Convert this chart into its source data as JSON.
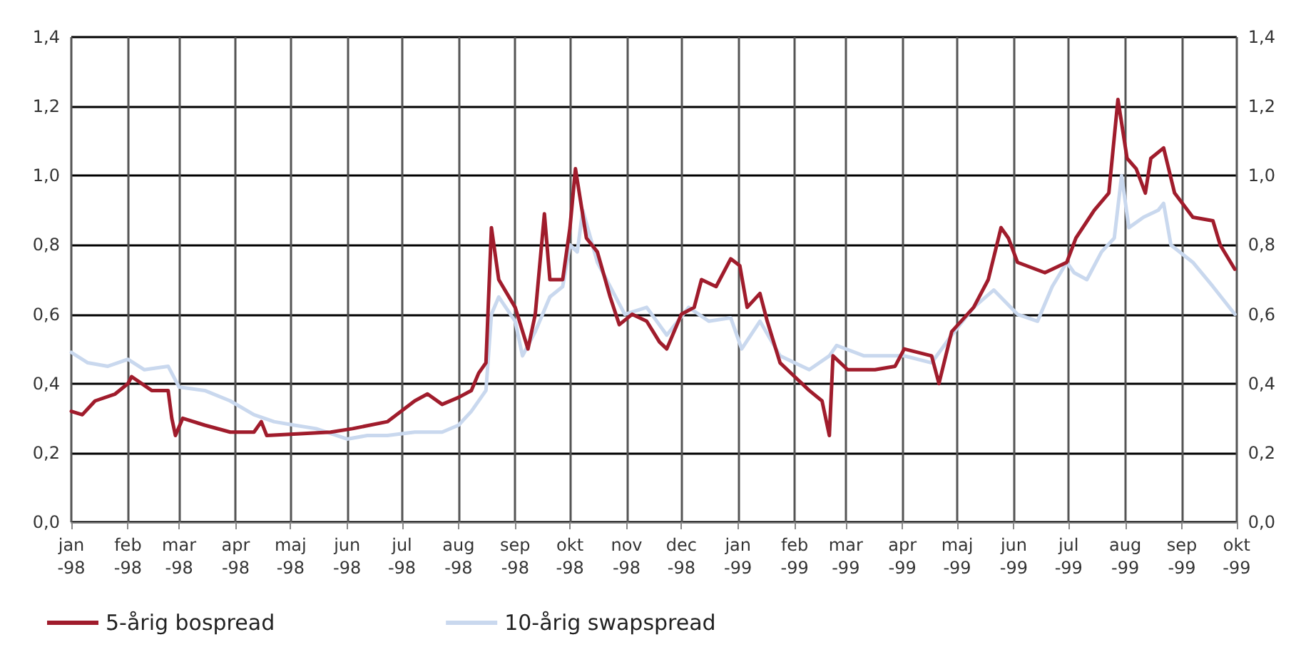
{
  "chart_data": {
    "type": "line",
    "xlim": [
      "1998-01-01",
      "1999-10-01"
    ],
    "xticks": [
      {
        "value": "1998-01-01",
        "label": "jan\n-98"
      },
      {
        "value": "1998-02-01",
        "label": "feb\n-98"
      },
      {
        "value": "1998-03-01",
        "label": "mar\n-98"
      },
      {
        "value": "1998-04-01",
        "label": "apr\n-98"
      },
      {
        "value": "1998-05-01",
        "label": "maj\n-98"
      },
      {
        "value": "1998-06-01",
        "label": "jun\n-98"
      },
      {
        "value": "1998-07-01",
        "label": "jul\n-98"
      },
      {
        "value": "1998-08-01",
        "label": "aug\n-98"
      },
      {
        "value": "1998-09-01",
        "label": "sep\n-98"
      },
      {
        "value": "1998-10-01",
        "label": "okt\n-98"
      },
      {
        "value": "1998-11-01",
        "label": "nov\n-98"
      },
      {
        "value": "1998-12-01",
        "label": "dec\n-98"
      },
      {
        "value": "1999-01-01",
        "label": "jan\n-99"
      },
      {
        "value": "1999-02-01",
        "label": "feb\n-99"
      },
      {
        "value": "1999-03-01",
        "label": "mar\n-99"
      },
      {
        "value": "1999-04-01",
        "label": "apr\n-99"
      },
      {
        "value": "1999-05-01",
        "label": "maj\n-99"
      },
      {
        "value": "1999-06-01",
        "label": "jun\n-99"
      },
      {
        "value": "1999-07-01",
        "label": "jul\n-99"
      },
      {
        "value": "1999-08-01",
        "label": "aug\n-99"
      },
      {
        "value": "1999-09-01",
        "label": "sep\n-99"
      },
      {
        "value": "1999-10-01",
        "label": "okt\n-99"
      }
    ],
    "ylim": [
      0,
      1.4
    ],
    "yticks": [
      {
        "value": 0,
        "label": "0,0"
      },
      {
        "value": 0.2,
        "label": "0,2"
      },
      {
        "value": 0.4,
        "label": "0,4"
      },
      {
        "value": 0.6,
        "label": "0,6"
      },
      {
        "value": 0.8,
        "label": "0,8"
      },
      {
        "value": 1.0,
        "label": "1,0"
      },
      {
        "value": 1.2,
        "label": "1,2"
      },
      {
        "value": 1.4,
        "label": "1,4"
      }
    ],
    "y2lim": [
      0,
      1.4
    ],
    "y2ticks": [
      {
        "value": 0,
        "label": "0,0"
      },
      {
        "value": 0.2,
        "label": "0,2"
      },
      {
        "value": 0.4,
        "label": "0,4"
      },
      {
        "value": 0.6,
        "label": "0,6"
      },
      {
        "value": 0.8,
        "label": "0,8"
      },
      {
        "value": 1.0,
        "label": "1,0"
      },
      {
        "value": 1.2,
        "label": "1,2"
      },
      {
        "value": 1.4,
        "label": "1,4"
      }
    ],
    "grid": true,
    "legend": "bottom left",
    "marker": "none",
    "series": [
      {
        "name": "5-årig bospread",
        "color": "#a01c2c",
        "x": [
          "1998-01-01",
          "1998-01-07",
          "1998-01-14",
          "1998-01-25",
          "1998-02-01",
          "1998-02-03",
          "1998-02-14",
          "1998-02-23",
          "1998-02-25",
          "1998-02-27",
          "1998-03-03",
          "1998-03-15",
          "1998-03-29",
          "1998-04-11",
          "1998-04-15",
          "1998-04-18",
          "1998-05-23",
          "1998-06-04",
          "1998-06-23",
          "1998-07-08",
          "1998-07-15",
          "1998-07-23",
          "1998-08-01",
          "1998-08-08",
          "1998-08-12",
          "1998-08-16",
          "1998-08-19",
          "1998-08-23",
          "1998-09-01",
          "1998-09-08",
          "1998-09-12",
          "1998-09-17",
          "1998-09-20",
          "1998-09-27",
          "1998-10-01",
          "1998-10-04",
          "1998-10-10",
          "1998-10-16",
          "1998-10-23",
          "1998-10-28",
          "1998-11-04",
          "1998-11-12",
          "1998-11-19",
          "1998-11-23",
          "1998-12-01",
          "1998-12-08",
          "1998-12-12",
          "1998-12-20",
          "1998-12-28",
          "1999-01-02",
          "1999-01-06",
          "1999-01-13",
          "1999-01-17",
          "1999-01-24",
          "1999-02-01",
          "1999-02-09",
          "1999-02-16",
          "1999-02-20",
          "1999-02-22",
          "1999-03-02",
          "1999-03-17",
          "1999-03-28",
          "1999-04-02",
          "1999-04-17",
          "1999-04-21",
          "1999-04-28",
          "1999-05-10",
          "1999-05-18",
          "1999-05-25",
          "1999-05-29",
          "1999-06-03",
          "1999-06-18",
          "1999-06-30",
          "1999-07-05",
          "1999-07-15",
          "1999-07-23",
          "1999-07-28",
          "1999-08-02",
          "1999-08-07",
          "1999-08-12",
          "1999-08-15",
          "1999-08-22",
          "1999-08-28",
          "1999-09-07",
          "1999-09-18",
          "1999-09-22",
          "1999-09-30"
        ],
        "values": [
          0.32,
          0.31,
          0.35,
          0.37,
          0.4,
          0.42,
          0.38,
          0.38,
          0.3,
          0.25,
          0.3,
          0.28,
          0.26,
          0.26,
          0.29,
          0.25,
          0.26,
          0.27,
          0.29,
          0.35,
          0.37,
          0.34,
          0.36,
          0.38,
          0.43,
          0.46,
          0.85,
          0.7,
          0.62,
          0.5,
          0.6,
          0.89,
          0.7,
          0.7,
          0.85,
          1.02,
          0.82,
          0.78,
          0.65,
          0.57,
          0.6,
          0.58,
          0.52,
          0.5,
          0.6,
          0.62,
          0.7,
          0.68,
          0.76,
          0.74,
          0.62,
          0.66,
          0.58,
          0.46,
          0.42,
          0.38,
          0.35,
          0.25,
          0.48,
          0.44,
          0.44,
          0.45,
          0.5,
          0.48,
          0.4,
          0.55,
          0.62,
          0.7,
          0.85,
          0.82,
          0.75,
          0.72,
          0.75,
          0.82,
          0.9,
          0.95,
          1.22,
          1.05,
          1.02,
          0.95,
          1.05,
          1.08,
          0.95,
          0.88,
          0.87,
          0.8,
          0.73
        ]
      },
      {
        "name": "10-årig swapspread",
        "color": "#c9d8ee",
        "x": [
          "1998-01-01",
          "1998-01-10",
          "1998-01-21",
          "1998-02-01",
          "1998-02-10",
          "1998-02-23",
          "1998-03-01",
          "1998-03-15",
          "1998-03-29",
          "1998-04-11",
          "1998-04-22",
          "1998-05-03",
          "1998-05-15",
          "1998-06-01",
          "1998-06-12",
          "1998-06-23",
          "1998-07-08",
          "1998-07-23",
          "1998-08-01",
          "1998-08-08",
          "1998-08-16",
          "1998-08-19",
          "1998-08-23",
          "1998-09-01",
          "1998-09-05",
          "1998-09-12",
          "1998-09-20",
          "1998-09-27",
          "1998-10-01",
          "1998-10-05",
          "1998-10-08",
          "1998-10-16",
          "1998-10-23",
          "1998-10-31",
          "1998-11-12",
          "1998-11-23",
          "1998-12-05",
          "1998-12-16",
          "1998-12-28",
          "1999-01-03",
          "1999-01-13",
          "1999-01-24",
          "1999-02-09",
          "1999-02-20",
          "1999-02-24",
          "1999-03-11",
          "1999-04-02",
          "1999-04-17",
          "1999-04-28",
          "1999-05-10",
          "1999-05-21",
          "1999-06-03",
          "1999-06-14",
          "1999-06-22",
          "1999-06-30",
          "1999-07-04",
          "1999-07-11",
          "1999-07-19",
          "1999-07-26",
          "1999-07-30",
          "1999-08-03",
          "1999-08-11",
          "1999-08-19",
          "1999-08-22",
          "1999-08-26",
          "1999-09-07",
          "1999-09-18",
          "1999-09-30"
        ],
        "values": [
          0.49,
          0.46,
          0.45,
          0.47,
          0.44,
          0.45,
          0.39,
          0.38,
          0.35,
          0.31,
          0.29,
          0.28,
          0.27,
          0.24,
          0.25,
          0.25,
          0.26,
          0.26,
          0.28,
          0.32,
          0.38,
          0.6,
          0.65,
          0.58,
          0.48,
          0.55,
          0.65,
          0.68,
          0.8,
          0.78,
          0.9,
          0.75,
          0.68,
          0.6,
          0.62,
          0.54,
          0.62,
          0.58,
          0.59,
          0.5,
          0.58,
          0.48,
          0.44,
          0.48,
          0.51,
          0.48,
          0.48,
          0.46,
          0.54,
          0.62,
          0.67,
          0.6,
          0.58,
          0.68,
          0.75,
          0.72,
          0.7,
          0.78,
          0.82,
          1.0,
          0.85,
          0.88,
          0.9,
          0.92,
          0.8,
          0.75,
          0.68,
          0.6
        ]
      }
    ]
  }
}
